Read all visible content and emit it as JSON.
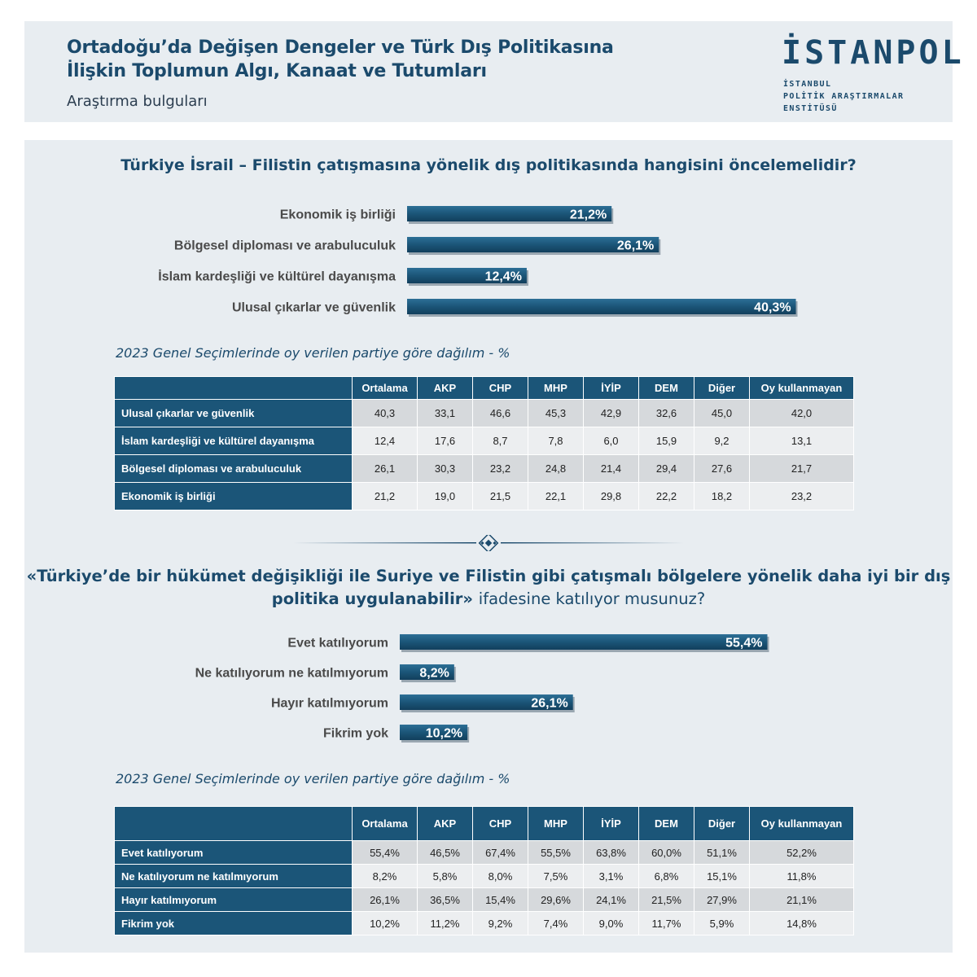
{
  "header": {
    "title": "Ortadoğu’da Değişen Dengeler ve Türk Dış Politikasına\nİlişkin Toplumun Algı, Kanaat ve Tutumları",
    "subtitle": "Araştırma bulguları"
  },
  "logo": {
    "mark": "İSTANPOL",
    "line1": "İSTANBUL",
    "line2": "POLİTİK ARAŞTIRMALAR",
    "line3": "ENSTİTÜSÜ"
  },
  "colors": {
    "bar": "#1b5578",
    "accent": "#1b4a6c",
    "panel": "#e8edf1"
  },
  "dist_caption": "2023 Genel Seçimlerinde oy verilen partiye göre dağılım - %",
  "chart_data": [
    {
      "type": "bar",
      "orientation": "horizontal",
      "title": "Türkiye İsrail – Filistin çatışmasına yönelik dış politikasında hangisini öncelemelidir?",
      "categories": [
        "Ekonomik iş birliği",
        "Bölgesel diploması ve arabuluculuk",
        "İslam kardeşliği ve kültürel dayanışma",
        "Ulusal çıkarlar ve güvenlik"
      ],
      "values": [
        21.2,
        26.1,
        12.4,
        40.3
      ],
      "value_labels": [
        "21,2%",
        "26,1%",
        "12,4%",
        "40,3%"
      ],
      "unit": "%",
      "grid": false,
      "legend": "none"
    },
    {
      "type": "bar",
      "orientation": "horizontal",
      "title_bold": "«Türkiye’de bir hükümet değişikliği ile Suriye ve Filistin gibi çatışmalı bölgelere yönelik daha iyi bir dış politika uygulanabilir»",
      "title_normal": "ifadesine katılıyor musunuz?",
      "categories": [
        "Evet katılıyorum",
        "Ne katılıyorum ne katılmıyorum",
        "Hayır katılmıyorum",
        "Fikrim yok"
      ],
      "values": [
        55.4,
        8.2,
        26.1,
        10.2
      ],
      "value_labels": [
        "55,4%",
        "8,2%",
        "26,1%",
        "10,2%"
      ],
      "unit": "%",
      "grid": false,
      "legend": "none"
    },
    {
      "type": "table",
      "columns": [
        "Ortalama",
        "AKP",
        "CHP",
        "MHP",
        "İYİP",
        "DEM",
        "Diğer",
        "Oy kullanmayan"
      ],
      "rows": [
        {
          "label": "Ulusal çıkarlar ve güvenlik",
          "values": [
            "40,3",
            "33,1",
            "46,6",
            "45,3",
            "42,9",
            "32,6",
            "45,0",
            "42,0"
          ]
        },
        {
          "label": "İslam kardeşliği ve kültürel dayanışma",
          "values": [
            "12,4",
            "17,6",
            "8,7",
            "7,8",
            "6,0",
            "15,9",
            "9,2",
            "13,1"
          ]
        },
        {
          "label": "Bölgesel diploması ve arabuluculuk",
          "values": [
            "26,1",
            "30,3",
            "23,2",
            "24,8",
            "21,4",
            "29,4",
            "27,6",
            "21,7"
          ]
        },
        {
          "label": "Ekonomik iş birliği",
          "values": [
            "21,2",
            "19,0",
            "21,5",
            "22,1",
            "29,8",
            "22,2",
            "18,2",
            "23,2"
          ]
        }
      ]
    },
    {
      "type": "table",
      "columns": [
        "Ortalama",
        "AKP",
        "CHP",
        "MHP",
        "İYİP",
        "DEM",
        "Diğer",
        "Oy kullanmayan"
      ],
      "rows": [
        {
          "label": "Evet katılıyorum",
          "values": [
            "55,4%",
            "46,5%",
            "67,4%",
            "55,5%",
            "63,8%",
            "60,0%",
            "51,1%",
            "52,2%"
          ]
        },
        {
          "label": "Ne katılıyorum ne katılmıyorum",
          "values": [
            "8,2%",
            "5,8%",
            "8,0%",
            "7,5%",
            "3,1%",
            "6,8%",
            "15,1%",
            "11,8%"
          ]
        },
        {
          "label": "Hayır katılmıyorum",
          "values": [
            "26,1%",
            "36,5%",
            "15,4%",
            "29,6%",
            "24,1%",
            "21,5%",
            "27,9%",
            "21,1%"
          ]
        },
        {
          "label": "Fikrim yok",
          "values": [
            "10,2%",
            "11,2%",
            "9,2%",
            "7,4%",
            "9,0%",
            "11,7%",
            "5,9%",
            "14,8%"
          ]
        }
      ]
    }
  ]
}
